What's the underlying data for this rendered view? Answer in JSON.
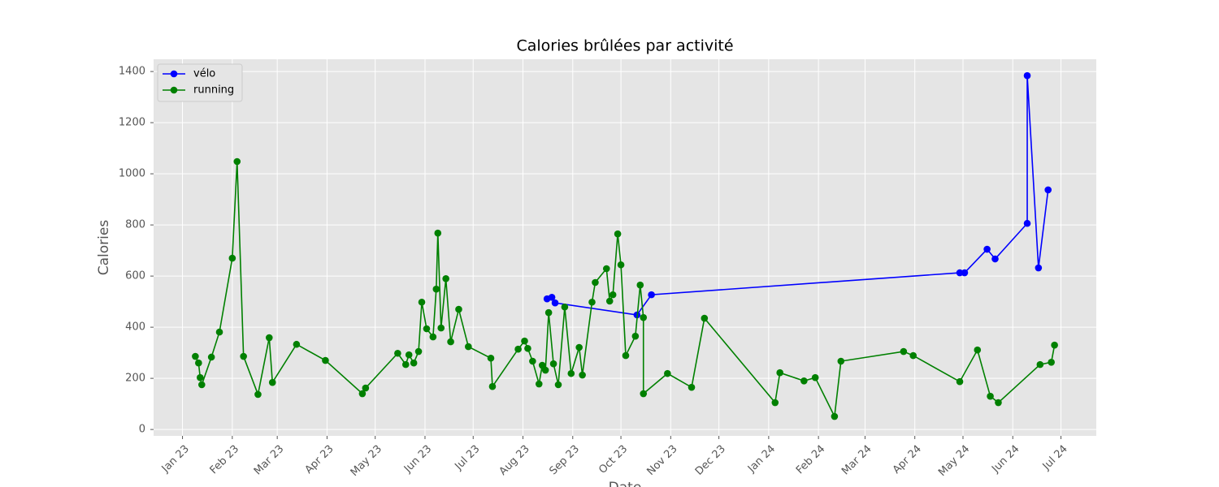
{
  "chart_data": {
    "type": "line",
    "title": "Calories brûlées par activité",
    "x_label": "Date",
    "y_label": "Calories",
    "xlim": [
      -18,
      569
    ],
    "ylim": [
      -25,
      1448
    ],
    "xticks": [
      {
        "value": 0,
        "label": "Jan 23"
      },
      {
        "value": 31,
        "label": "Feb 23"
      },
      {
        "value": 59,
        "label": "Mar 23"
      },
      {
        "value": 90,
        "label": "Apr 23"
      },
      {
        "value": 120,
        "label": "May 23"
      },
      {
        "value": 151,
        "label": "Jun 23"
      },
      {
        "value": 181,
        "label": "Jul 23"
      },
      {
        "value": 212,
        "label": "Aug 23"
      },
      {
        "value": 243,
        "label": "Sep 23"
      },
      {
        "value": 273,
        "label": "Oct 23"
      },
      {
        "value": 304,
        "label": "Nov 23"
      },
      {
        "value": 334,
        "label": "Dec 23"
      },
      {
        "value": 365,
        "label": "Jan 24"
      },
      {
        "value": 396,
        "label": "Feb 24"
      },
      {
        "value": 425,
        "label": "Mar 24"
      },
      {
        "value": 456,
        "label": "Apr 24"
      },
      {
        "value": 486,
        "label": "May 24"
      },
      {
        "value": 517,
        "label": "Jun 24"
      },
      {
        "value": 547,
        "label": "Jul 24"
      }
    ],
    "yticks": [
      0,
      200,
      400,
      600,
      800,
      1000,
      1200,
      1400
    ],
    "grid": true,
    "legend": "upper left",
    "series": [
      {
        "name": "vélo",
        "color": "#0000ff",
        "x": [
          227,
          230,
          232,
          283,
          292,
          484,
          487,
          501,
          506,
          526,
          526,
          533,
          539
        ],
        "values": [
          511,
          517,
          495,
          448,
          527,
          613,
          613,
          705,
          667,
          806,
          1384,
          632,
          937
        ]
      },
      {
        "name": "running",
        "color": "#008000",
        "x": [
          8,
          10,
          11,
          12,
          18,
          23,
          31,
          34,
          38,
          47,
          54,
          56,
          71,
          89,
          112,
          114,
          134,
          139,
          141,
          144,
          147,
          149,
          152,
          156,
          158,
          159,
          161,
          164,
          167,
          172,
          178,
          192,
          193,
          209,
          213,
          215,
          218,
          222,
          224,
          226,
          228,
          231,
          234,
          238,
          242,
          247,
          249,
          255,
          257,
          264,
          266,
          268,
          271,
          273,
          276,
          282,
          285,
          287,
          287,
          302,
          317,
          325,
          369,
          372,
          387,
          394,
          406,
          410,
          449,
          455,
          484,
          495,
          503,
          508,
          534,
          541,
          543
        ],
        "values": [
          286,
          260,
          203,
          175,
          283,
          381,
          670,
          1048,
          286,
          137,
          359,
          184,
          333,
          270,
          140,
          162,
          298,
          254,
          292,
          260,
          305,
          498,
          394,
          362,
          549,
          768,
          397,
          590,
          343,
          470,
          324,
          279,
          168,
          314,
          346,
          317,
          267,
          178,
          251,
          232,
          457,
          257,
          175,
          479,
          219,
          321,
          213,
          498,
          575,
          629,
          502,
          527,
          765,
          644,
          289,
          365,
          565,
          438,
          140,
          219,
          165,
          435,
          105,
          222,
          190,
          203,
          51,
          267,
          305,
          289,
          187,
          311,
          130,
          105,
          254,
          263,
          330
        ]
      }
    ]
  }
}
